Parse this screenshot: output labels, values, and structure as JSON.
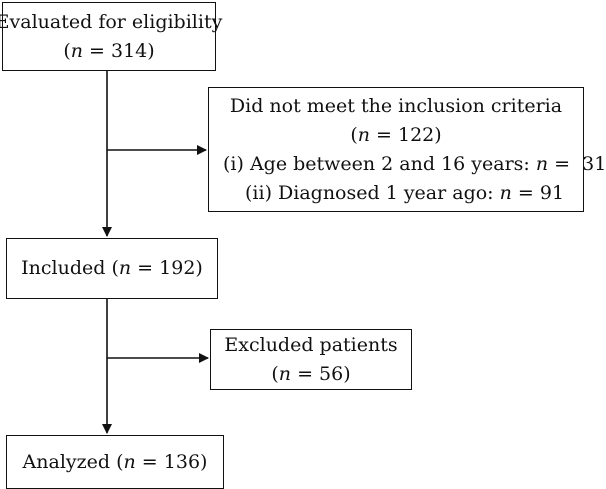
{
  "boxes": {
    "eligibility": {
      "title": "Evaluated for eligibility",
      "n_prefix": "(",
      "n_var": "n",
      "n_value": " = 314)"
    },
    "criteria": {
      "title": "Did not meet the inclusion criteria",
      "n_prefix": "(",
      "n_var": "n",
      "n_value": " = 122)",
      "reasons": [
        {
          "text": "(i) Age between 2 and 16 years: ",
          "n_var": "n",
          "n_value": " =  31"
        },
        {
          "text": "(ii) Diagnosed 1 year ago: ",
          "n_var": "n",
          "n_value": " = 91"
        }
      ]
    },
    "included": {
      "title": "Included (",
      "n_var": "n",
      "n_value": " = 192)"
    },
    "excluded": {
      "title": "Excluded patients",
      "n_prefix": "(",
      "n_var": "n",
      "n_value": " = 56)"
    },
    "analyzed": {
      "title": "Analyzed (",
      "n_var": "n",
      "n_value": " = 136)"
    }
  },
  "colors": {
    "stroke": "#111111",
    "background": "#ffffff"
  }
}
